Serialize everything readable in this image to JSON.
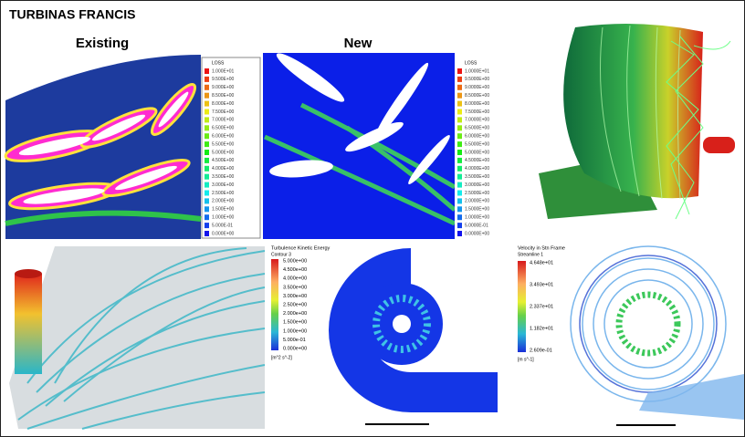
{
  "header": {
    "title": "TURBINAS FRANCIS"
  },
  "panels": {
    "existing": "Existing",
    "new": "New"
  },
  "legend_existing": {
    "title": "LOSS",
    "labels": [
      "1.000E+01",
      "9.500E+00",
      "9.000E+00",
      "8.500E+00",
      "8.000E+00",
      "7.500E+00",
      "7.000E+00",
      "6.500E+00",
      "6.000E+00",
      "5.500E+00",
      "5.000E+00",
      "4.500E+00",
      "4.000E+00",
      "3.500E+00",
      "3.000E+00",
      "2.500E+00",
      "2.000E+00",
      "1.500E+00",
      "1.000E+00",
      "5.000E-01",
      "0.000E+00"
    ]
  },
  "legend_new": {
    "title": "LOSS",
    "labels": [
      "1.0000E+01",
      "9.5000E+00",
      "9.0000E+00",
      "8.5000E+00",
      "8.0000E+00",
      "7.5000E+00",
      "7.0000E+00",
      "6.5000E+00",
      "6.0000E+00",
      "5.5000E+00",
      "5.0000E+00",
      "4.5000E+00",
      "4.0000E+00",
      "3.5000E+00",
      "3.0000E+00",
      "2.5000E+00",
      "2.0000E+00",
      "1.5000E+00",
      "1.0000E+00",
      "5.0000E-01",
      "0.0000E+00"
    ]
  },
  "legend_turbulence": {
    "title": "Turbulence Kinetic Energy",
    "subtitle": "Contour 3",
    "labels": [
      "5.000e+00",
      "4.500e+00",
      "4.000e+00",
      "3.500e+00",
      "3.000e+00",
      "2.500e+00",
      "2.000e+00",
      "1.500e+00",
      "1.000e+00",
      "5.000e-01",
      "0.000e+00"
    ],
    "unit": "[m^2 s^-2]"
  },
  "legend_velocity": {
    "title": "Velocity in Stn Frame",
    "subtitle": "Streamline 1",
    "labels": [
      "4.648e+01",
      "3.493e+01",
      "2.337e+01",
      "1.182e+01",
      "2.609e-01"
    ],
    "unit": "[m s^-1]"
  }
}
